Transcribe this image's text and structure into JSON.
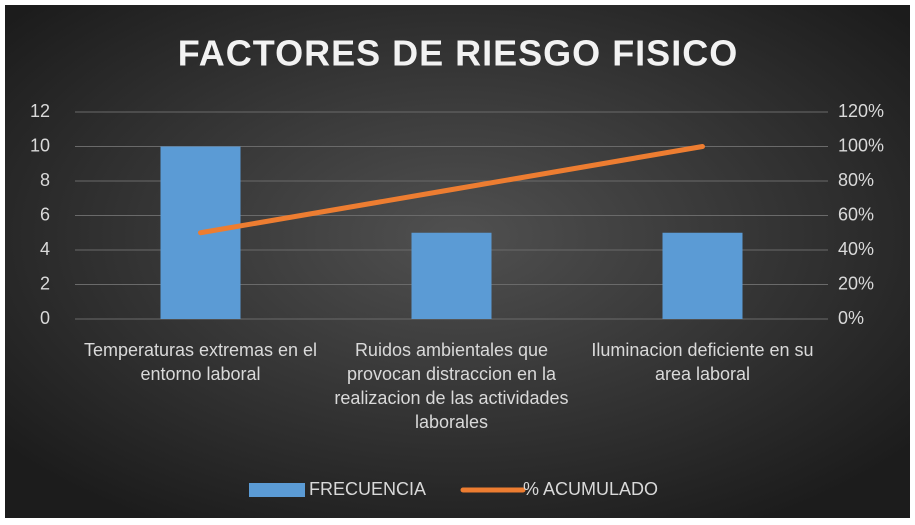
{
  "chart_data": {
    "type": "bar",
    "title": "FACTORES DE RIESGO FISICO",
    "categories": [
      "Temperaturas extremas en el  entorno laboral",
      "Ruidos ambientales que provocan distraccion en la realizacion de las actividades laborales",
      "Iluminacion deficiente en su area laboral"
    ],
    "series": [
      {
        "name": "FRECUENCIA",
        "color": "#5b9bd5",
        "values": [
          10,
          5,
          5
        ]
      },
      {
        "name": "% ACUMULADO",
        "color": "#ed7d31",
        "values": [
          50,
          75,
          100
        ],
        "axis": "y2",
        "type": "line"
      }
    ],
    "ylim": [
      0,
      12
    ],
    "yticks": [
      0,
      2,
      4,
      6,
      8,
      10,
      12
    ],
    "y2lim": [
      0,
      120
    ],
    "y2ticks": [
      {
        "value": 0,
        "label": "0%"
      },
      {
        "value": 20,
        "label": "20%"
      },
      {
        "value": 40,
        "label": "40%"
      },
      {
        "value": 60,
        "label": "60%"
      },
      {
        "value": 80,
        "label": "80%"
      },
      {
        "value": 100,
        "label": "100%"
      },
      {
        "value": 120,
        "label": "120%"
      }
    ],
    "grid": true,
    "legend": "bottom"
  }
}
